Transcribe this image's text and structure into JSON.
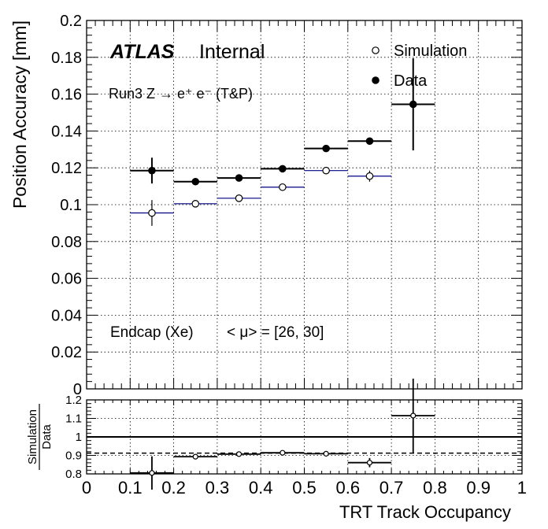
{
  "chart_data": [
    {
      "type": "scatter",
      "panel": "main",
      "ylabel": "Position Accuracy [mm]",
      "ylim": [
        0,
        0.2
      ],
      "xlim": [
        0,
        1
      ],
      "grid": true,
      "legend_position": "top-right",
      "y_ticks": [
        "0",
        "0.02",
        "0.04",
        "0.06",
        "0.08",
        "0.1",
        "0.12",
        "0.14",
        "0.16",
        "0.18",
        "0.2"
      ],
      "annotations": {
        "atlas": "ATLAS",
        "internal": "Internal",
        "process": "Run3 Z → e⁺ e⁻ (T&P)",
        "region": "Endcap (Xe)",
        "pileup": "< μ> = [26, 30]"
      },
      "series": [
        {
          "name": "Simulation",
          "marker": "open-circle",
          "color": "#000080",
          "x": [
            0.15,
            0.25,
            0.35,
            0.45,
            0.55,
            0.65
          ],
          "xerr": [
            0.05,
            0.05,
            0.05,
            0.05,
            0.05,
            0.05
          ],
          "y": [
            0.0955,
            0.1005,
            0.1035,
            0.1095,
            0.1185,
            0.1155
          ],
          "yerr": [
            0.007,
            0.001,
            0.001,
            0.001,
            0.001,
            0.003
          ]
        },
        {
          "name": "Data",
          "marker": "filled-circle",
          "color": "#000000",
          "x": [
            0.15,
            0.25,
            0.35,
            0.45,
            0.55,
            0.65,
            0.75
          ],
          "xerr": [
            0.05,
            0.05,
            0.05,
            0.05,
            0.05,
            0.05,
            0.05
          ],
          "y": [
            0.1185,
            0.1125,
            0.1145,
            0.1195,
            0.1305,
            0.1345,
            0.1545
          ],
          "yerr": [
            0.007,
            0.001,
            0.001,
            0.001,
            0.001,
            0.001,
            0.025
          ]
        }
      ]
    },
    {
      "type": "scatter",
      "panel": "ratio",
      "ylabel_top": "Simulation",
      "ylabel_bottom": "Data",
      "xlabel": "TRT Track Occupancy",
      "ylim": [
        0.8,
        1.2
      ],
      "xlim": [
        0,
        1
      ],
      "grid": true,
      "x_ticks": [
        "0",
        "0.1",
        "0.2",
        "0.3",
        "0.4",
        "0.5",
        "0.6",
        "0.7",
        "0.8",
        "0.9",
        "1"
      ],
      "y_ticks": [
        "0.8",
        "0.9",
        "1",
        "1.1",
        "1.2"
      ],
      "reference_lines": [
        {
          "y": 1.0,
          "style": "solid"
        },
        {
          "y": 0.912,
          "style": "dashed"
        }
      ],
      "series": [
        {
          "name": "Simulation/Data",
          "marker": "open-circle",
          "color": "#000000",
          "x": [
            0.15,
            0.25,
            0.35,
            0.45,
            0.55,
            0.65,
            0.75
          ],
          "xerr": [
            0.05,
            0.05,
            0.05,
            0.05,
            0.05,
            0.05,
            0.05
          ],
          "y": [
            0.805,
            0.893,
            0.907,
            0.914,
            0.909,
            0.861,
            1.115
          ],
          "yerr": [
            0.09,
            0.01,
            0.005,
            0.005,
            0.005,
            0.025,
            0.2
          ]
        }
      ]
    }
  ]
}
